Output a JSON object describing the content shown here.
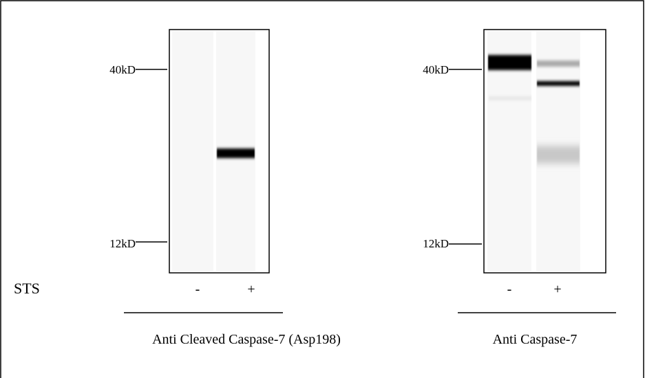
{
  "row_label": "STS",
  "panels": [
    {
      "markers": [
        "40kD",
        "12kD"
      ],
      "lanes": [
        "-",
        "+"
      ],
      "label": "Anti Cleaved Caspase-7 (Asp198)"
    },
    {
      "markers": [
        "40kD",
        "12kD"
      ],
      "lanes": [
        "-",
        "+"
      ],
      "label": "Anti Caspase-7"
    }
  ]
}
